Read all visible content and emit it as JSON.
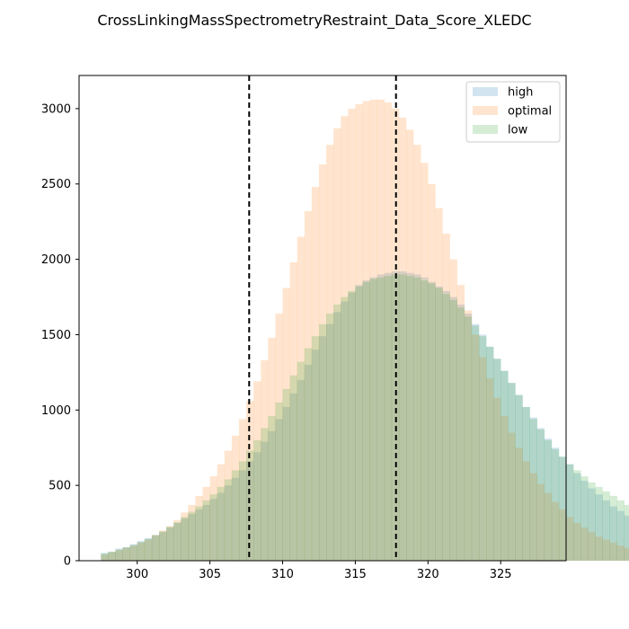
{
  "chart_data": {
    "type": "histogram",
    "title": "CrossLinkingMassSpectrometryRestraint_Data_Score_XLEDC",
    "xlabel": "",
    "ylabel": "",
    "xlim": [
      296.0,
      329.5
    ],
    "ylim": [
      0,
      3220
    ],
    "xticks": [
      300,
      305,
      310,
      315,
      320,
      325
    ],
    "yticks": [
      0,
      500,
      1000,
      1500,
      2000,
      2500,
      3000
    ],
    "grid": false,
    "legend_position": "top-right",
    "bin_start": 297.5,
    "bin_width": 0.5,
    "vlines": [
      307.7,
      317.8
    ],
    "series": [
      {
        "name": "high",
        "color": "#1f77b4",
        "opacity": 0.2,
        "values": [
          50,
          60,
          80,
          90,
          110,
          130,
          150,
          170,
          190,
          220,
          250,
          280,
          310,
          340,
          370,
          410,
          450,
          500,
          550,
          600,
          660,
          720,
          790,
          860,
          940,
          1020,
          1110,
          1200,
          1300,
          1400,
          1490,
          1570,
          1650,
          1720,
          1780,
          1830,
          1860,
          1880,
          1900,
          1910,
          1920,
          1920,
          1910,
          1900,
          1880,
          1850,
          1820,
          1790,
          1750,
          1700,
          1640,
          1570,
          1500,
          1420,
          1340,
          1260,
          1180,
          1100,
          1020,
          950,
          880,
          810,
          750,
          690,
          640,
          580,
          530,
          480,
          440,
          400,
          360,
          330,
          300,
          270,
          240,
          220,
          200,
          180,
          160,
          140,
          130,
          120,
          110,
          100,
          90,
          80,
          75,
          70,
          65,
          60,
          55,
          50
        ]
      },
      {
        "name": "optimal",
        "color": "#ff7f0e",
        "opacity": 0.2,
        "values": [
          40,
          55,
          70,
          85,
          100,
          120,
          140,
          170,
          200,
          230,
          270,
          320,
          370,
          430,
          490,
          560,
          640,
          730,
          830,
          940,
          1060,
          1190,
          1330,
          1480,
          1640,
          1810,
          1980,
          2150,
          2320,
          2480,
          2630,
          2760,
          2870,
          2950,
          3000,
          3030,
          3050,
          3060,
          3060,
          3040,
          3000,
          2940,
          2860,
          2760,
          2640,
          2500,
          2340,
          2170,
          2000,
          1830,
          1660,
          1500,
          1350,
          1210,
          1080,
          960,
          850,
          750,
          660,
          580,
          510,
          450,
          390,
          340,
          290,
          250,
          220,
          190,
          160,
          140,
          120,
          100,
          85,
          70,
          60,
          50,
          40,
          35,
          30,
          25,
          20,
          15,
          15,
          10,
          10,
          5,
          5,
          5,
          5,
          5
        ]
      },
      {
        "name": "low",
        "color": "#2ca02c",
        "opacity": 0.2,
        "values": [
          50,
          60,
          75,
          90,
          105,
          125,
          145,
          170,
          195,
          225,
          255,
          290,
          325,
          360,
          400,
          440,
          490,
          540,
          600,
          660,
          730,
          800,
          880,
          960,
          1050,
          1140,
          1230,
          1320,
          1410,
          1490,
          1570,
          1640,
          1700,
          1750,
          1790,
          1820,
          1850,
          1870,
          1880,
          1890,
          1900,
          1900,
          1890,
          1880,
          1860,
          1840,
          1810,
          1770,
          1730,
          1680,
          1620,
          1560,
          1490,
          1420,
          1340,
          1260,
          1180,
          1100,
          1020,
          940,
          870,
          800,
          740,
          690,
          640,
          600,
          560,
          520,
          490,
          460,
          430,
          400,
          370,
          340,
          310,
          280,
          250,
          220,
          200,
          180,
          160,
          140,
          130,
          120,
          110,
          100,
          90,
          80,
          70,
          60
        ]
      }
    ]
  }
}
